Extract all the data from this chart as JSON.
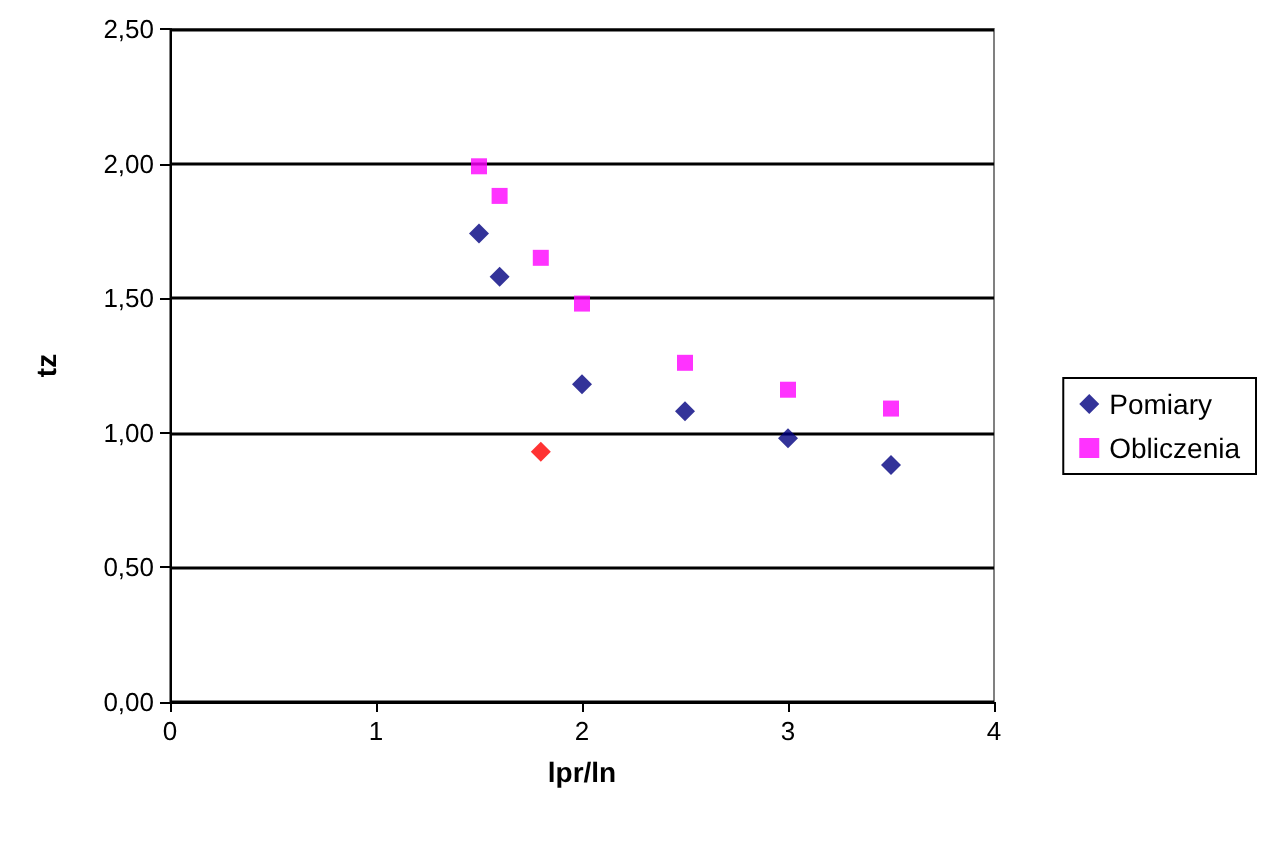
{
  "chart_data": {
    "type": "scatter",
    "xlabel": "lpr/ln",
    "ylabel": "tz",
    "xlim": [
      0,
      4
    ],
    "xticks": [
      0,
      1,
      2,
      3,
      4
    ],
    "ylim": [
      0,
      2.5
    ],
    "yticks": [
      {
        "value": 0,
        "label": "0,00"
      },
      {
        "value": 0.5,
        "label": "0,50"
      },
      {
        "value": 1,
        "label": "1,00"
      },
      {
        "value": 1.5,
        "label": "1,50"
      },
      {
        "value": 2,
        "label": "2,00"
      },
      {
        "value": 2.5,
        "label": "2,50"
      }
    ],
    "grid": "y",
    "legend": "right",
    "series": [
      {
        "name": "Pomiary",
        "color": "#000080",
        "marker": "diamond",
        "x": [
          1.5,
          1.6,
          1.8,
          2.0,
          2.5,
          3.0,
          3.5
        ],
        "values": [
          1.74,
          1.58,
          0.93,
          1.18,
          1.08,
          0.98,
          0.88
        ],
        "colors": [
          "#000080",
          "#000080",
          "#ff0000",
          "#000080",
          "#000080",
          "#000080",
          "#000080"
        ]
      },
      {
        "name": "Obliczenia",
        "color": "#ff00ff",
        "marker": "square",
        "x": [
          1.5,
          1.6,
          1.8,
          2.0,
          2.5,
          3.0,
          3.5
        ],
        "values": [
          1.99,
          1.88,
          1.65,
          1.48,
          1.26,
          1.16,
          1.09
        ]
      }
    ]
  }
}
